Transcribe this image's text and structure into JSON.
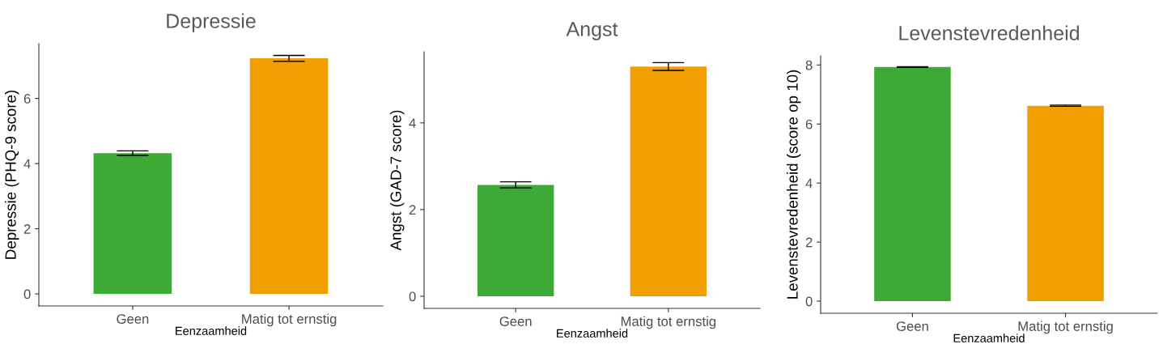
{
  "chart_data": [
    {
      "type": "bar",
      "title": "Depressie",
      "xlabel": "Eenzaamheid",
      "ylabel": "Depressie (PHQ-9 score)",
      "categories": [
        "Geen",
        "Matig tot ernstig"
      ],
      "values": [
        4.32,
        7.23
      ],
      "errors": [
        0.07,
        0.09
      ],
      "colors": [
        "#3caa35",
        "#f09e00"
      ],
      "ylim": [
        -0.37,
        7.68
      ],
      "yticks": [
        0,
        2,
        4,
        6
      ],
      "grid": false
    },
    {
      "type": "bar",
      "title": "Angst",
      "xlabel": "Eenzaamheid",
      "ylabel": "Angst (GAD-7 score)",
      "categories": [
        "Geen",
        "Matig tot ernstig"
      ],
      "values": [
        2.57,
        5.3
      ],
      "errors": [
        0.07,
        0.09
      ],
      "colors": [
        "#3caa35",
        "#f09e00"
      ],
      "ylim": [
        -0.28,
        5.64
      ],
      "yticks": [
        0,
        2,
        4
      ],
      "grid": false
    },
    {
      "type": "bar",
      "title": "Levenstevredenheid",
      "xlabel": "Eenzaamheid",
      "ylabel": "Levenstevredenheid (score op 10)",
      "categories": [
        "Geen",
        "Matig tot ernstig"
      ],
      "values": [
        7.93,
        6.62
      ],
      "errors": [
        0.01,
        0.02
      ],
      "colors": [
        "#3caa35",
        "#f09e00"
      ],
      "ylim": [
        -0.41,
        8.31
      ],
      "yticks": [
        0,
        2,
        4,
        6,
        8
      ],
      "grid": false
    }
  ]
}
